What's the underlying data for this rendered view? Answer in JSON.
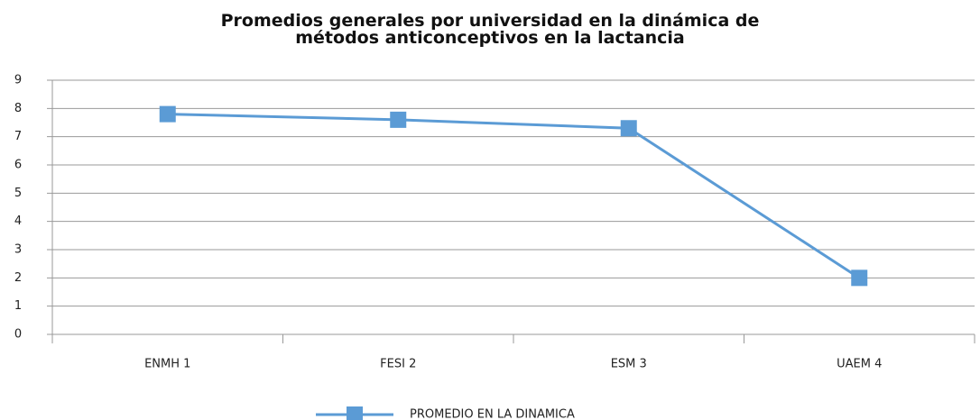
{
  "chart_data": {
    "type": "line",
    "title": "Promedios generales por universidad en la dinámica de métodos anticonceptivos en la lactancia",
    "categories": [
      "ENMH 1",
      "FESI 2",
      "ESM 3",
      "UAEM 4"
    ],
    "series": [
      {
        "name": "PROMEDIO EN LA DINAMICA",
        "color": "#5b9bd5",
        "values": [
          7.8,
          7.6,
          7.3,
          2.0
        ]
      }
    ],
    "ylim": [
      0,
      9
    ],
    "yticks": [
      0,
      1,
      2,
      3,
      4,
      5,
      6,
      7,
      8,
      9
    ],
    "grid": true,
    "legend": "bottom"
  }
}
